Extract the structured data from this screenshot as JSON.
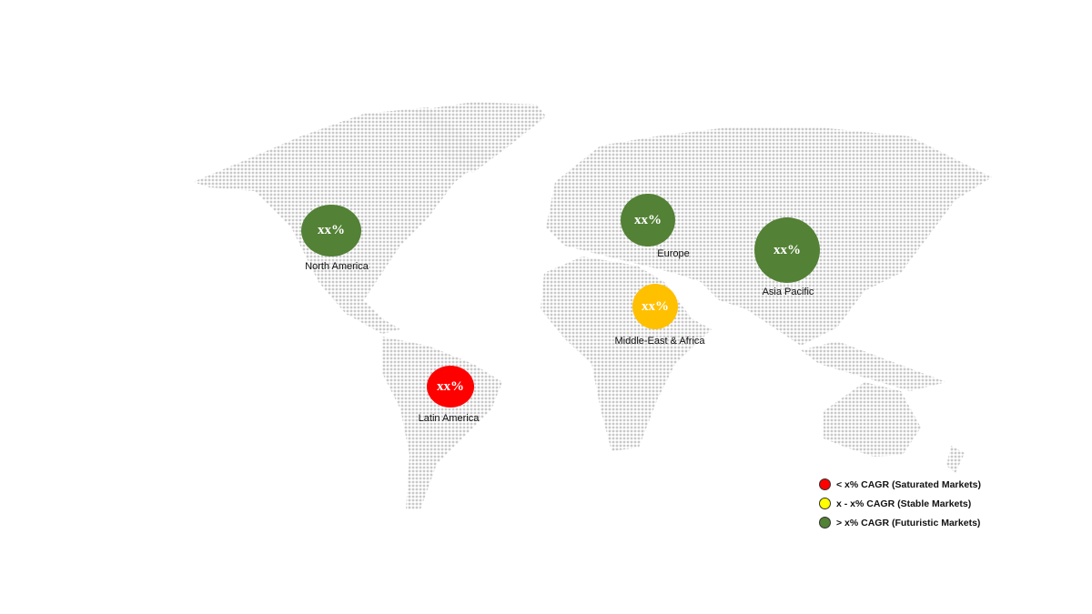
{
  "regions": [
    {
      "name": "North America",
      "value": "xx%",
      "color": "#538135",
      "status": "futuristic"
    },
    {
      "name": "Europe",
      "value": "xx%",
      "color": "#538135",
      "status": "futuristic"
    },
    {
      "name": "Asia Pacific",
      "value": "xx%",
      "color": "#538135",
      "status": "futuristic"
    },
    {
      "name": "Middle-East & Africa",
      "value": "xx%",
      "color": "#FFC000",
      "status": "stable"
    },
    {
      "name": "Latin America",
      "value": "xx%",
      "color": "#FF0000",
      "status": "saturated"
    }
  ],
  "legend": [
    {
      "label": "< x% CAGR (Saturated Markets)",
      "color": "#FF0000"
    },
    {
      "label": "x - x% CAGR (Stable Markets)",
      "color": "#FFFF00"
    },
    {
      "label": "> x% CAGR (Futuristic Markets)",
      "color": "#538135"
    }
  ],
  "map_dot_color": "#c8c8c8"
}
